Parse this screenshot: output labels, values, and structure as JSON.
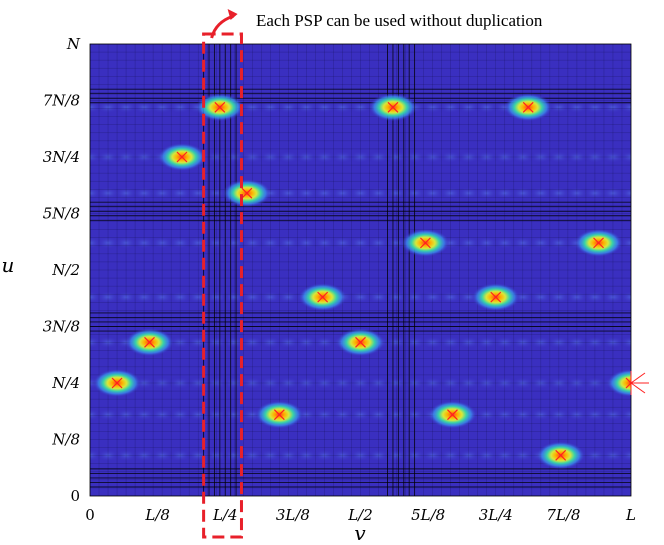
{
  "chart_data": {
    "type": "heatmap",
    "title": "",
    "xlabel": "v",
    "ylabel": "u",
    "x_ticks": [
      "0",
      "L/8",
      "L/4",
      "3L/8",
      "L/2",
      "5L/8",
      "3L/4",
      "7L/8",
      "L"
    ],
    "y_ticks": [
      "0",
      "N/8",
      "N/4",
      "3N/8",
      "N/2",
      "5N/8",
      "3N/4",
      "7N/8",
      "N"
    ],
    "xlim": [
      0,
      1
    ],
    "ylim": [
      0,
      1
    ],
    "peaks": [
      {
        "v": 0.05,
        "u": 0.25
      },
      {
        "v": 0.11,
        "u": 0.34
      },
      {
        "v": 0.17,
        "u": 0.75
      },
      {
        "v": 0.24,
        "u": 0.86
      },
      {
        "v": 0.29,
        "u": 0.67
      },
      {
        "v": 0.35,
        "u": 0.18
      },
      {
        "v": 0.43,
        "u": 0.44
      },
      {
        "v": 0.5,
        "u": 0.34
      },
      {
        "v": 0.56,
        "u": 0.86
      },
      {
        "v": 0.62,
        "u": 0.56
      },
      {
        "v": 0.67,
        "u": 0.18
      },
      {
        "v": 0.75,
        "u": 0.44
      },
      {
        "v": 0.81,
        "u": 0.86
      },
      {
        "v": 0.87,
        "u": 0.09
      },
      {
        "v": 0.94,
        "u": 0.56
      },
      {
        "v": 1.0,
        "u": 0.25
      }
    ],
    "grid_v": [
      0.21,
      0.22,
      0.23,
      0.24,
      0.25,
      0.26,
      0.27,
      0.55,
      0.56,
      0.57,
      0.58,
      0.59,
      0.6
    ],
    "grid_u": [
      0.02,
      0.03,
      0.04,
      0.05,
      0.06,
      0.365,
      0.375,
      0.385,
      0.395,
      0.405,
      0.61,
      0.62,
      0.63,
      0.64,
      0.65,
      0.87,
      0.88,
      0.89,
      0.9
    ],
    "highlight_v_range": [
      0.21,
      0.28
    ],
    "annotation": "Each PSP can be used without duplication"
  },
  "colors": {
    "background": "#3a2fc0",
    "grid": "#0a0a30",
    "marker": "#ff2020",
    "highlight": "#e8202a"
  }
}
